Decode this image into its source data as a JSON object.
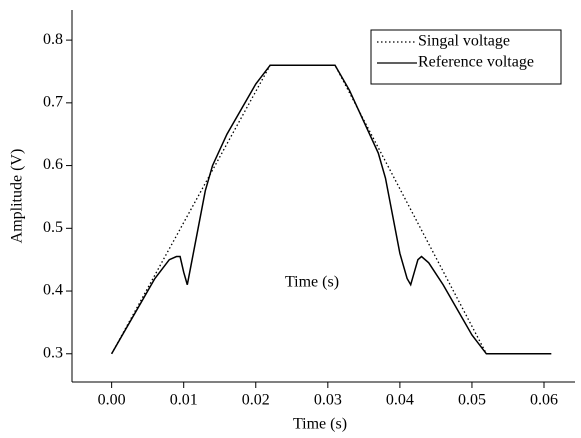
{
  "chart_data": {
    "type": "line",
    "xlabel": "Time (s)",
    "ylabel": "Amplitude (V)",
    "annotation": "Time (s)",
    "xlim": [
      -0.0055,
      0.0643
    ],
    "ylim": [
      0.255,
      0.848
    ],
    "xticks": [
      {
        "value": 0,
        "label": "0.00"
      },
      0.01,
      0.02,
      0.03,
      0.04,
      0.05,
      0.06
    ],
    "yticks": [
      0.3,
      0.4,
      0.5,
      0.6,
      0.7,
      0.8
    ],
    "legend": "upper right",
    "series": [
      {
        "name": "Singal voltage",
        "color": "#000000",
        "line_style": "dotted",
        "x": [
          0,
          0.022,
          0.031,
          0.052,
          0.061
        ],
        "values": [
          0.3,
          0.76,
          0.76,
          0.3,
          0.3
        ]
      },
      {
        "name": "Reference voltage",
        "color": "#000000",
        "line_style": "solid",
        "x": [
          0,
          0.002,
          0.004,
          0.006,
          0.008,
          0.009,
          0.0095,
          0.01,
          0.0105,
          0.011,
          0.012,
          0.013,
          0.014,
          0.016,
          0.018,
          0.02,
          0.022,
          0.026,
          0.031,
          0.033,
          0.035,
          0.037,
          0.038,
          0.039,
          0.04,
          0.041,
          0.0415,
          0.042,
          0.0425,
          0.043,
          0.044,
          0.046,
          0.048,
          0.05,
          0.052,
          0.055,
          0.061
        ],
        "values": [
          0.3,
          0.34,
          0.38,
          0.42,
          0.45,
          0.455,
          0.455,
          0.43,
          0.41,
          0.44,
          0.5,
          0.56,
          0.6,
          0.65,
          0.69,
          0.73,
          0.76,
          0.76,
          0.76,
          0.72,
          0.67,
          0.62,
          0.58,
          0.52,
          0.46,
          0.42,
          0.41,
          0.43,
          0.45,
          0.455,
          0.445,
          0.41,
          0.37,
          0.33,
          0.3,
          0.3,
          0.3
        ]
      }
    ]
  }
}
